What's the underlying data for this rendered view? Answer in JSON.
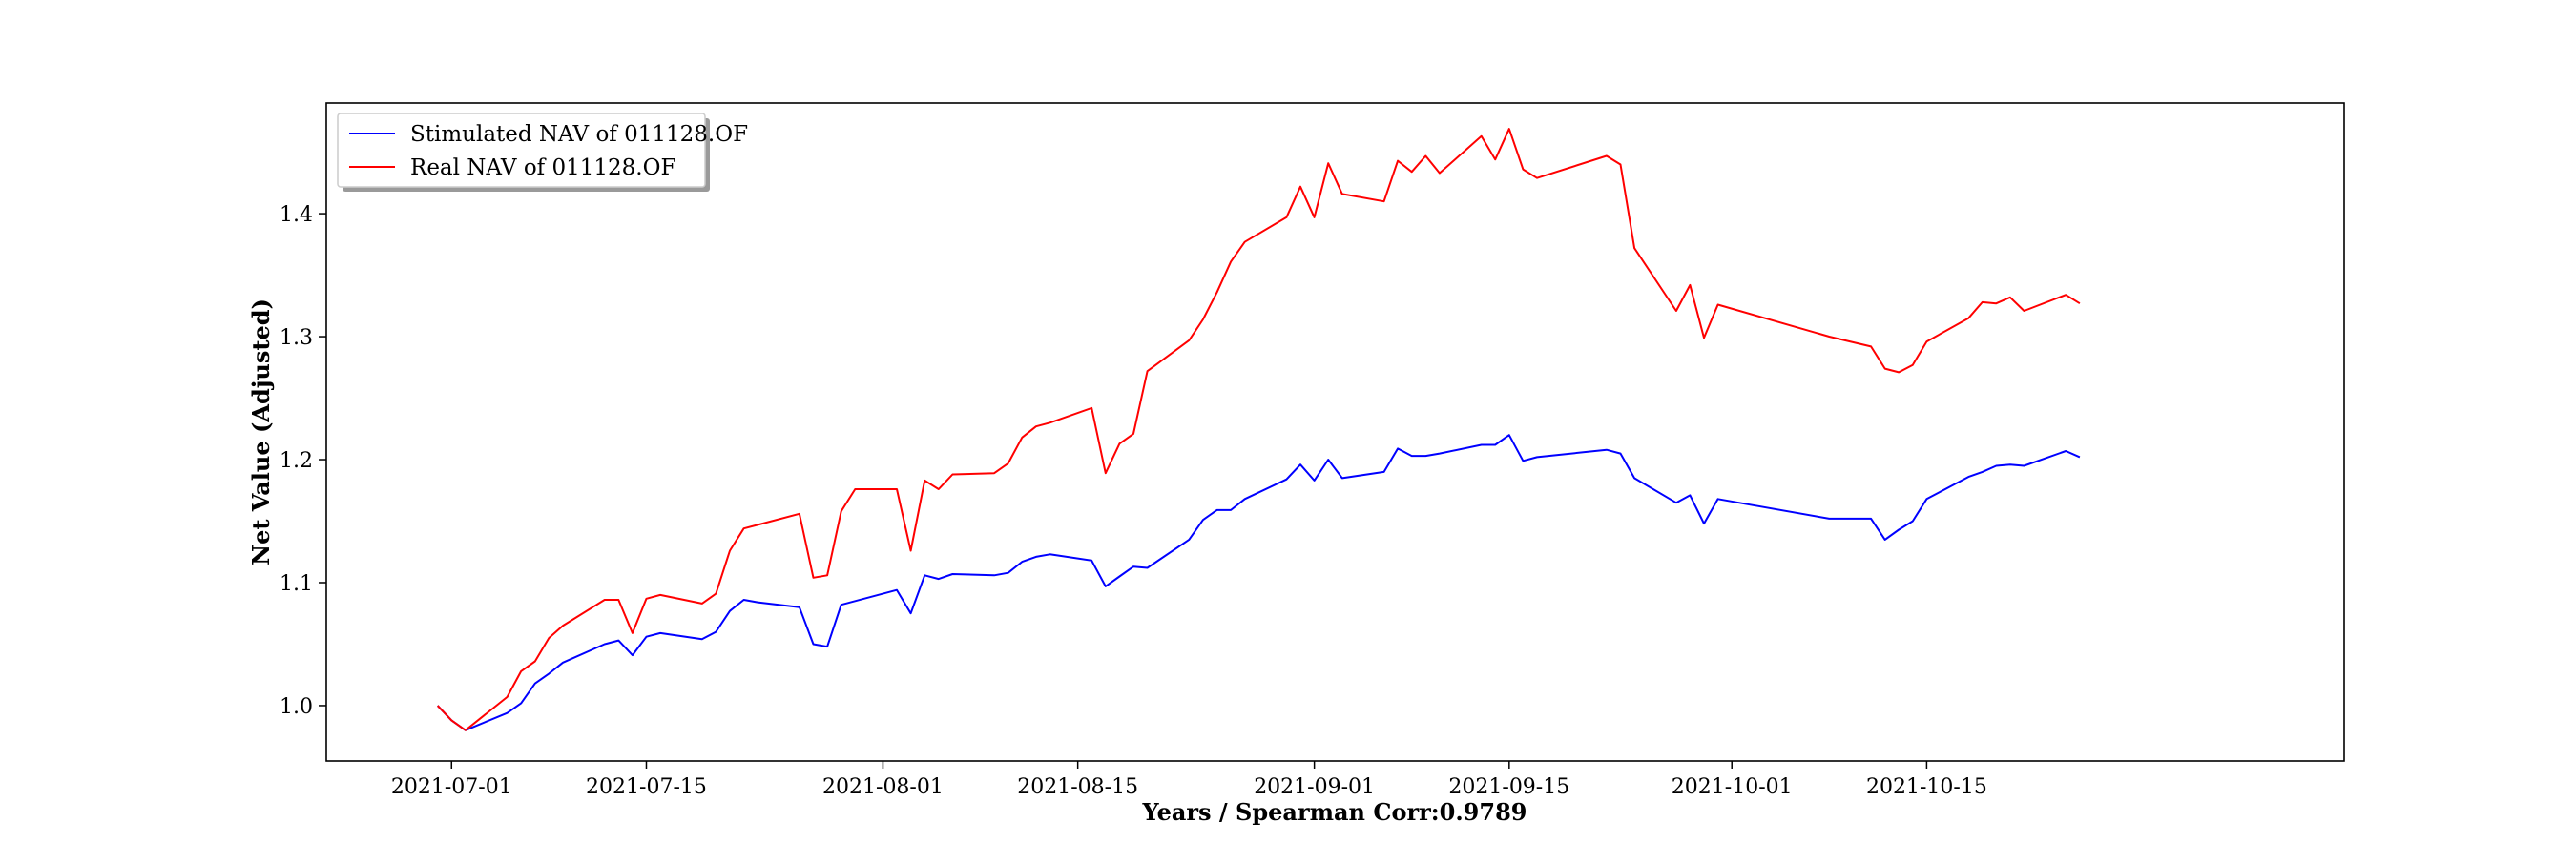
{
  "chart_data": {
    "type": "line",
    "xlabel": "Years / Spearman Corr:0.9789",
    "ylabel": "Net Value (Adjusted)",
    "xlim": [
      "2021-06-22",
      "2021-11-14"
    ],
    "ylim": [
      0.955,
      1.49
    ],
    "grid": false,
    "legend_position": "top-left",
    "x_ticks": [
      "2021-07-01",
      "2021-07-15",
      "2021-08-01",
      "2021-08-15",
      "2021-09-01",
      "2021-09-15",
      "2021-10-01",
      "2021-10-15"
    ],
    "y_ticks": [
      1.0,
      1.1,
      1.2,
      1.3,
      1.4
    ],
    "y_tick_labels": [
      "1.0",
      "1.1",
      "1.2",
      "1.3",
      "1.4"
    ],
    "series": [
      {
        "name": "Stimulated NAV of 011128.OF",
        "color": "#0000ff",
        "x": [
          "2021-06-30",
          "2021-07-01",
          "2021-07-02",
          "2021-07-05",
          "2021-07-06",
          "2021-07-07",
          "2021-07-08",
          "2021-07-09",
          "2021-07-12",
          "2021-07-13",
          "2021-07-14",
          "2021-07-15",
          "2021-07-16",
          "2021-07-19",
          "2021-07-20",
          "2021-07-21",
          "2021-07-22",
          "2021-07-23",
          "2021-07-26",
          "2021-07-27",
          "2021-07-28",
          "2021-07-29",
          "2021-08-02",
          "2021-08-03",
          "2021-08-04",
          "2021-08-05",
          "2021-08-06",
          "2021-08-09",
          "2021-08-10",
          "2021-08-11",
          "2021-08-12",
          "2021-08-13",
          "2021-08-16",
          "2021-08-17",
          "2021-08-18",
          "2021-08-19",
          "2021-08-20",
          "2021-08-23",
          "2021-08-24",
          "2021-08-25",
          "2021-08-26",
          "2021-08-27",
          "2021-08-30",
          "2021-08-31",
          "2021-09-01",
          "2021-09-02",
          "2021-09-03",
          "2021-09-06",
          "2021-09-07",
          "2021-09-08",
          "2021-09-09",
          "2021-09-10",
          "2021-09-13",
          "2021-09-14",
          "2021-09-15",
          "2021-09-16",
          "2021-09-17",
          "2021-09-22",
          "2021-09-23",
          "2021-09-24",
          "2021-09-27",
          "2021-09-28",
          "2021-09-29",
          "2021-09-30",
          "2021-10-08",
          "2021-10-11",
          "2021-10-12",
          "2021-10-13",
          "2021-10-14",
          "2021-10-15",
          "2021-10-18",
          "2021-10-19",
          "2021-10-20",
          "2021-10-21",
          "2021-10-22",
          "2021-10-25",
          "2021-10-26"
        ],
        "values": [
          1.0,
          0.988,
          0.98,
          0.994,
          1.002,
          1.018,
          1.026,
          1.035,
          1.05,
          1.053,
          1.041,
          1.056,
          1.059,
          1.054,
          1.06,
          1.077,
          1.086,
          1.084,
          1.08,
          1.05,
          1.048,
          1.082,
          1.094,
          1.075,
          1.106,
          1.103,
          1.107,
          1.106,
          1.108,
          1.117,
          1.121,
          1.123,
          1.118,
          1.097,
          1.105,
          1.113,
          1.112,
          1.135,
          1.151,
          1.159,
          1.159,
          1.168,
          1.184,
          1.196,
          1.183,
          1.2,
          1.185,
          1.19,
          1.209,
          1.203,
          1.203,
          1.205,
          1.212,
          1.212,
          1.22,
          1.199,
          1.202,
          1.208,
          1.205,
          1.185,
          1.165,
          1.171,
          1.148,
          1.168,
          1.152,
          1.152,
          1.135,
          1.143,
          1.15,
          1.168,
          1.186,
          1.19,
          1.195,
          1.196,
          1.195,
          1.207,
          1.202
        ]
      },
      {
        "name": "Real NAV of 011128.OF",
        "color": "#ff0000",
        "x": [
          "2021-06-30",
          "2021-07-01",
          "2021-07-02",
          "2021-07-05",
          "2021-07-06",
          "2021-07-07",
          "2021-07-08",
          "2021-07-09",
          "2021-07-12",
          "2021-07-13",
          "2021-07-14",
          "2021-07-15",
          "2021-07-16",
          "2021-07-19",
          "2021-07-20",
          "2021-07-21",
          "2021-07-22",
          "2021-07-23",
          "2021-07-26",
          "2021-07-27",
          "2021-07-28",
          "2021-07-29",
          "2021-07-30",
          "2021-08-02",
          "2021-08-03",
          "2021-08-04",
          "2021-08-05",
          "2021-08-06",
          "2021-08-09",
          "2021-08-10",
          "2021-08-11",
          "2021-08-12",
          "2021-08-13",
          "2021-08-16",
          "2021-08-17",
          "2021-08-18",
          "2021-08-19",
          "2021-08-20",
          "2021-08-23",
          "2021-08-24",
          "2021-08-25",
          "2021-08-26",
          "2021-08-27",
          "2021-08-30",
          "2021-08-31",
          "2021-09-01",
          "2021-09-02",
          "2021-09-03",
          "2021-09-06",
          "2021-09-07",
          "2021-09-08",
          "2021-09-09",
          "2021-09-10",
          "2021-09-13",
          "2021-09-14",
          "2021-09-15",
          "2021-09-16",
          "2021-09-17",
          "2021-09-22",
          "2021-09-23",
          "2021-09-24",
          "2021-09-27",
          "2021-09-28",
          "2021-09-29",
          "2021-09-30",
          "2021-10-08",
          "2021-10-11",
          "2021-10-12",
          "2021-10-13",
          "2021-10-14",
          "2021-10-15",
          "2021-10-18",
          "2021-10-19",
          "2021-10-20",
          "2021-10-21",
          "2021-10-22",
          "2021-10-25",
          "2021-10-26"
        ],
        "values": [
          1.0,
          0.988,
          0.98,
          1.007,
          1.028,
          1.036,
          1.055,
          1.065,
          1.086,
          1.086,
          1.059,
          1.087,
          1.09,
          1.083,
          1.091,
          1.126,
          1.144,
          1.147,
          1.156,
          1.104,
          1.106,
          1.158,
          1.176,
          1.176,
          1.126,
          1.183,
          1.176,
          1.188,
          1.189,
          1.197,
          1.218,
          1.227,
          1.23,
          1.242,
          1.189,
          1.213,
          1.221,
          1.272,
          1.297,
          1.314,
          1.336,
          1.361,
          1.377,
          1.397,
          1.422,
          1.397,
          1.441,
          1.416,
          1.41,
          1.443,
          1.434,
          1.447,
          1.433,
          1.463,
          1.444,
          1.469,
          1.436,
          1.429,
          1.447,
          1.44,
          1.372,
          1.321,
          1.342,
          1.299,
          1.326,
          1.3,
          1.292,
          1.274,
          1.271,
          1.277,
          1.296,
          1.315,
          1.328,
          1.327,
          1.332,
          1.321,
          1.334,
          1.327
        ]
      }
    ]
  }
}
